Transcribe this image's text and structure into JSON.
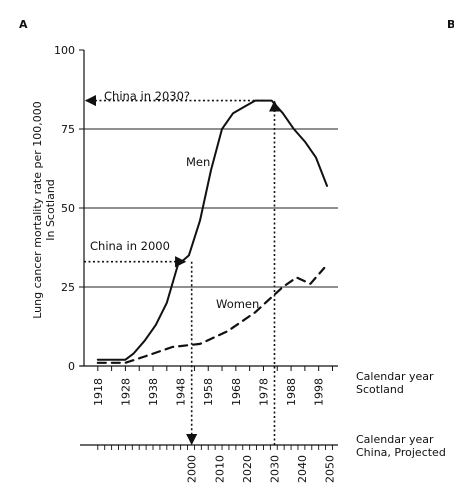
{
  "chart_data": {
    "type": "line",
    "panel_labels": [
      "A",
      "B"
    ],
    "ylabel": [
      "Lung cancer mortality rate per 100,000",
      "In Scotland"
    ],
    "ylim": [
      0,
      100
    ],
    "yticks": [
      0,
      25,
      50,
      75,
      100
    ],
    "grid": "horizontal lines at 25, 50, 75",
    "x_scotland": {
      "label": [
        "Calendar year",
        "Scotland"
      ],
      "range": [
        1913,
        2005
      ],
      "ticks": [
        1918,
        1928,
        1938,
        1948,
        1958,
        1968,
        1978,
        1988,
        1998
      ]
    },
    "x_china": {
      "label": [
        "Calendar year",
        "China, Projected"
      ],
      "ticks": [
        2000,
        2010,
        2020,
        2030,
        2040,
        2050
      ],
      "scotland_equivalent": [
        1952,
        1962,
        1972,
        1982,
        1992,
        2002
      ]
    },
    "series": [
      {
        "name": "Men",
        "style": "solid",
        "x": [
          1918,
          1923,
          1928,
          1931,
          1935,
          1939,
          1943,
          1947,
          1951,
          1955,
          1959,
          1963,
          1967,
          1971,
          1975,
          1978,
          1981,
          1985,
          1989,
          1993,
          1997,
          2001
        ],
        "y": [
          2,
          2,
          2,
          4,
          8,
          13,
          20,
          32,
          35,
          46,
          62,
          75,
          80,
          82,
          84,
          84,
          84,
          80,
          75,
          71,
          66,
          57
        ]
      },
      {
        "name": "Women",
        "style": "dashed",
        "x": [
          1918,
          1928,
          1935,
          1945,
          1955,
          1965,
          1975,
          1980,
          1985,
          1990,
          1995,
          2000
        ],
        "y": [
          1,
          1,
          3,
          6,
          7,
          11,
          17,
          21,
          25,
          28,
          26,
          31
        ]
      }
    ],
    "annotations": [
      {
        "text": "China in 2030?",
        "arrow_from_year": 1978,
        "value": 84
      },
      {
        "text": "China in 2000",
        "arrow_to_year": 1950,
        "value": 33
      }
    ],
    "colors": {
      "line": "#111111",
      "grid": "#222222"
    }
  }
}
